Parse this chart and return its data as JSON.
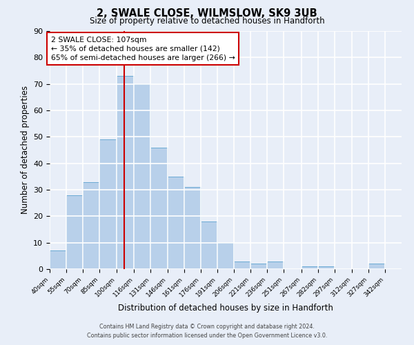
{
  "title": "2, SWALE CLOSE, WILMSLOW, SK9 3UB",
  "subtitle": "Size of property relative to detached houses in Handforth",
  "xlabel": "Distribution of detached houses by size in Handforth",
  "ylabel": "Number of detached properties",
  "bin_labels": [
    "40sqm",
    "55sqm",
    "70sqm",
    "85sqm",
    "100sqm",
    "116sqm",
    "131sqm",
    "146sqm",
    "161sqm",
    "176sqm",
    "191sqm",
    "206sqm",
    "221sqm",
    "236sqm",
    "251sqm",
    "267sqm",
    "282sqm",
    "297sqm",
    "312sqm",
    "327sqm",
    "342sqm"
  ],
  "bar_values": [
    7,
    28,
    33,
    49,
    73,
    70,
    46,
    35,
    31,
    18,
    10,
    3,
    2,
    3,
    0,
    1,
    1,
    0,
    0,
    2,
    0
  ],
  "bin_edges": [
    40,
    55,
    70,
    85,
    100,
    116,
    131,
    146,
    161,
    176,
    191,
    206,
    221,
    236,
    251,
    267,
    282,
    297,
    312,
    327,
    342,
    357
  ],
  "bar_color": "#b8d0ea",
  "bar_edgecolor": "#6aaad4",
  "ylim": [
    0,
    90
  ],
  "yticks": [
    0,
    10,
    20,
    30,
    40,
    50,
    60,
    70,
    80,
    90
  ],
  "property_size": 107,
  "property_label": "2 SWALE CLOSE: 107sqm",
  "annotation_line1": "← 35% of detached houses are smaller (142)",
  "annotation_line2": "65% of semi-detached houses are larger (266) →",
  "vline_color": "#cc0000",
  "annotation_box_edgecolor": "#cc0000",
  "annotation_box_facecolor": "#ffffff",
  "footer1": "Contains HM Land Registry data © Crown copyright and database right 2024.",
  "footer2": "Contains public sector information licensed under the Open Government Licence v3.0.",
  "background_color": "#e8eef8",
  "axes_background": "#e8eef8",
  "grid_color": "#ffffff"
}
